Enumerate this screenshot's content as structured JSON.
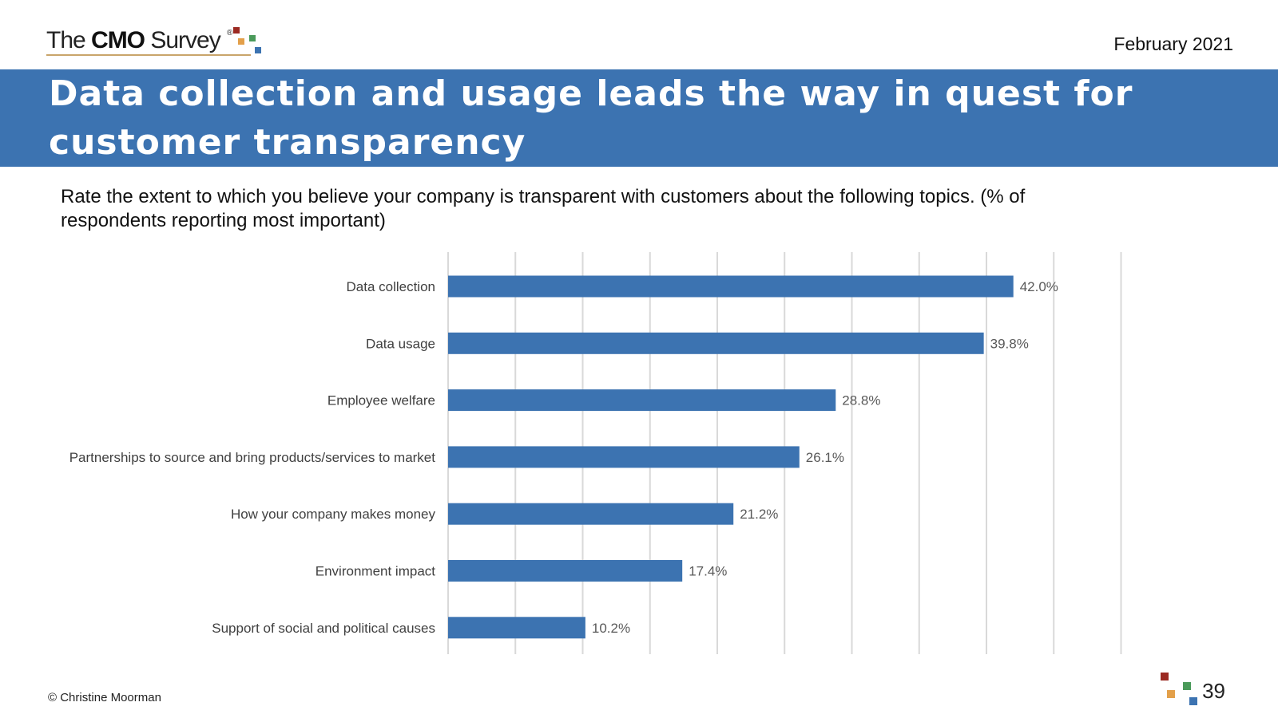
{
  "header": {
    "logo_pre": "The ",
    "logo_bold": "CMO",
    "logo_post": " Survey",
    "logo_reg": "®",
    "date": "February 2021"
  },
  "slide_title": "Data collection and usage leads the way in quest for customer transparency",
  "question": "Rate the extent to which you believe your company is transparent with customers about the following topics. (% of respondents reporting most important)",
  "colors": {
    "banner": "#3c73b1",
    "bar": "#3c73b1",
    "grid": "#d9d9d9",
    "sq_red": "#9b2a22",
    "sq_orange": "#e3a04a",
    "sq_green": "#4a9a5a",
    "sq_blue": "#3c73b1"
  },
  "chart_data": {
    "type": "bar",
    "orientation": "horizontal",
    "categories": [
      "Data collection",
      "Data usage",
      "Employee welfare",
      "Partnerships to source and bring products/services to market",
      "How your company makes money",
      "Environment impact",
      "Support of social and political causes"
    ],
    "values": [
      42.0,
      39.8,
      28.8,
      26.1,
      21.2,
      17.4,
      10.2
    ],
    "value_labels": [
      "42.0%",
      "39.8%",
      "28.8%",
      "26.1%",
      "21.2%",
      "17.4%",
      "10.2%"
    ],
    "xlim": [
      0,
      50
    ],
    "grid": true
  },
  "footer": {
    "copyright": "© Christine Moorman",
    "page": "39"
  }
}
